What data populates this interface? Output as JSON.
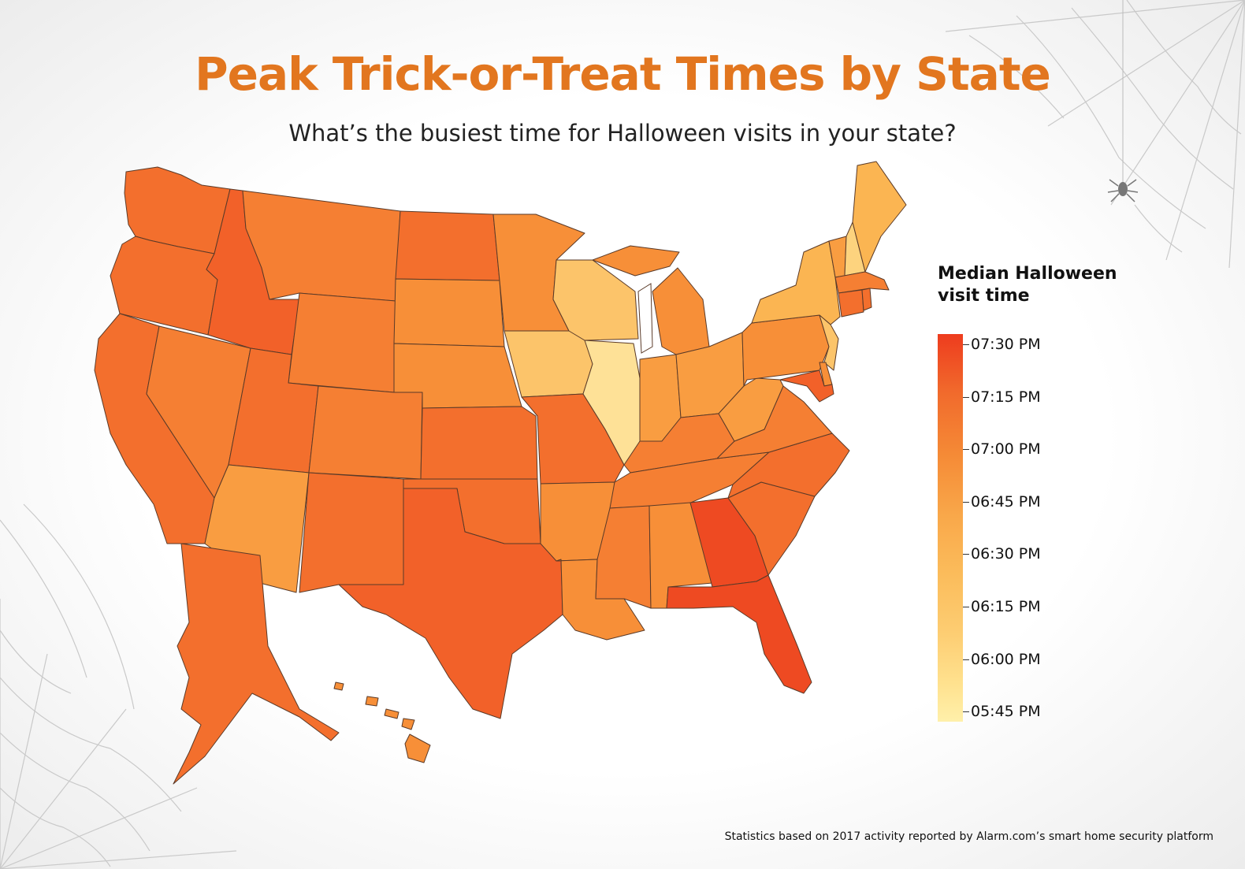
{
  "title": "Peak Trick-or-Treat Times by State",
  "subtitle": "What’s the busiest time for Halloween visits in your state?",
  "legend": {
    "title_line1": "Median Halloween",
    "title_line2": "visit time",
    "ticks": [
      "07:30 PM",
      "07:15 PM",
      "07:00 PM",
      "06:45 PM",
      "06:30 PM",
      "06:15 PM",
      "06:00 PM",
      "05:45 PM"
    ],
    "scale_top_color": "#ee3c1e",
    "scale_bottom_color": "#fff0aa"
  },
  "footer": "Statistics based on 2017 activity reported by Alarm.com’s smart home security platform",
  "colors": {
    "t730": "#ee4a22",
    "t715": "#f26129",
    "t710": "#f36f2d",
    "t700": "#f57f33",
    "t650": "#f78f38",
    "t645": "#f99d41",
    "t630": "#fbb552",
    "t620": "#fcc46a",
    "t610": "#fdd37e",
    "t600": "#fee197",
    "title": "#e2761f"
  },
  "states": {
    "washington": "t710",
    "oregon": "t710",
    "california": "t710",
    "nevada": "t700",
    "idaho": "t715",
    "montana": "t700",
    "wyoming": "t700",
    "utah": "t710",
    "arizona": "t645",
    "colorado": "t700",
    "new-mexico": "t710",
    "north-dakota": "t710",
    "south-dakota": "t650",
    "nebraska": "t650",
    "kansas": "t710",
    "oklahoma": "t710",
    "texas": "t715",
    "minnesota": "t650",
    "iowa": "t620",
    "missouri": "t710",
    "arkansas": "t650",
    "louisiana": "t650",
    "wisconsin": "t620",
    "illinois": "t600",
    "michigan": "t650",
    "indiana": "t645",
    "ohio": "t645",
    "kentucky": "t700",
    "tennessee": "t700",
    "mississippi": "t700",
    "alabama": "t650",
    "georgia": "t730",
    "florida": "t730",
    "south-carolina": "t710",
    "north-carolina": "t710",
    "virginia": "t700",
    "west-virginia": "t645",
    "pennsylvania": "t650",
    "new-york": "t630",
    "vermont": "t645",
    "new-hampshire": "t610",
    "maine": "t630",
    "massachusetts": "t700",
    "connecticut": "t710",
    "rhode-island": "t710",
    "new-jersey": "t620",
    "delaware": "t650",
    "maryland": "t715",
    "alaska": "t710",
    "hawaii": "t650"
  }
}
